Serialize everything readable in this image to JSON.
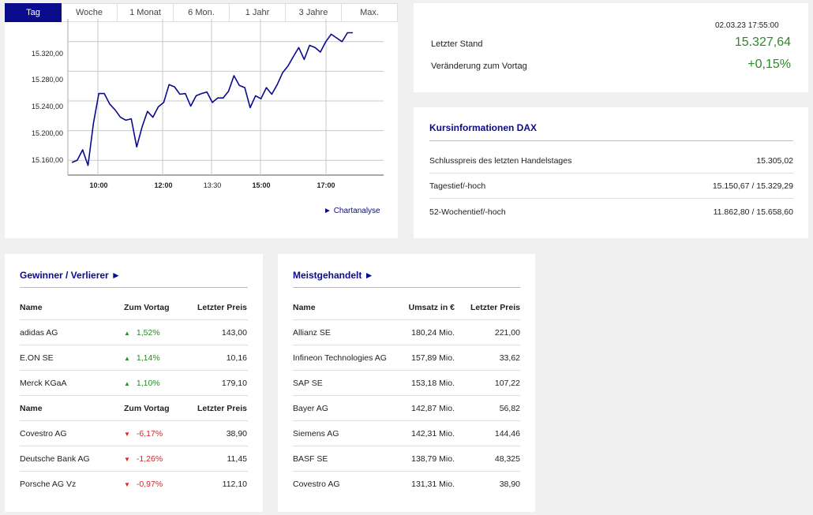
{
  "tabs": [
    "Tag",
    "Woche",
    "1 Monat",
    "6 Mon.",
    "1 Jahr",
    "3 Jahre",
    "Max."
  ],
  "chart": {
    "y_ticks": [
      "15.320,00",
      "15.280,00",
      "15.240,00",
      "15.200,00",
      "15.160,00"
    ],
    "x_ticks": [
      {
        "label": "10:00",
        "bold": true
      },
      {
        "label": "12:00",
        "bold": true
      },
      {
        "label": "13:30",
        "bold": false
      },
      {
        "label": "15:00",
        "bold": true
      },
      {
        "label": "17:00",
        "bold": true
      }
    ],
    "link_label": "Chartanalyse",
    "line_color": "#0a0a8c"
  },
  "chart_data": {
    "type": "line",
    "ylim": [
      15140,
      15340
    ],
    "grid": true,
    "series": [
      {
        "values": [
          15157,
          15160,
          15174,
          15153,
          15210,
          15250,
          15250,
          15236,
          15228,
          15218,
          15214,
          15216,
          15178,
          15205,
          15226,
          15218,
          15232,
          15238,
          15262,
          15259,
          15249,
          15250,
          15233,
          15247,
          15250,
          15252,
          15238,
          15244,
          15244,
          15253,
          15274,
          15261,
          15258,
          15231,
          15247,
          15243,
          15258,
          15249,
          15262,
          15278,
          15287,
          15300,
          15312,
          15296,
          15315,
          15312,
          15306,
          15320,
          15330,
          15325,
          15320,
          15332,
          15332
        ]
      }
    ]
  },
  "quote": {
    "timestamp": "02.03.23 17:55:00",
    "last_label": "Letzter Stand",
    "last_value": "15.327,64",
    "change_label": "Veränderung zum Vortag",
    "change_value": "+0,15%"
  },
  "info": {
    "title": "Kursinformationen DAX",
    "rows": [
      {
        "label": "Schlusspreis des letzten Handelstages",
        "value": "15.305,02"
      },
      {
        "label": "Tagestief/-hoch",
        "value": "15.150,67 / 15.329,29"
      },
      {
        "label": "52-Wochentief/-hoch",
        "value": "11.862,80 / 15.658,60"
      }
    ]
  },
  "movers": {
    "title": "Gewinner / Verlierer ►",
    "headers": [
      "Name",
      "Zum Vortag",
      "Letzter Preis"
    ],
    "gainers": [
      {
        "name": "adidas AG",
        "change": "1,52%",
        "price": "143,00"
      },
      {
        "name": "E.ON SE",
        "change": "1,14%",
        "price": "10,16"
      },
      {
        "name": "Merck KGaA",
        "change": "1,10%",
        "price": "179,10"
      }
    ],
    "losers": [
      {
        "name": "Covestro AG",
        "change": "-6,17%",
        "price": "38,90"
      },
      {
        "name": "Deutsche Bank AG",
        "change": "-1,26%",
        "price": "11,45"
      },
      {
        "name": "Porsche AG Vz",
        "change": "-0,97%",
        "price": "112,10"
      }
    ],
    "up_icon": "▲",
    "down_icon": "▼"
  },
  "traded": {
    "title": "Meistgehandelt ►",
    "headers": [
      "Name",
      "Umsatz in €",
      "Letzter Preis"
    ],
    "rows": [
      {
        "name": "Allianz SE",
        "turnover": "180,24 Mio.",
        "price": "221,00"
      },
      {
        "name": "Infineon Technologies AG",
        "turnover": "157,89 Mio.",
        "price": "33,62"
      },
      {
        "name": "SAP SE",
        "turnover": "153,18 Mio.",
        "price": "107,22"
      },
      {
        "name": "Bayer AG",
        "turnover": "142,87 Mio.",
        "price": "56,82"
      },
      {
        "name": "Siemens AG",
        "turnover": "142,31 Mio.",
        "price": "144,46"
      },
      {
        "name": "BASF SE",
        "turnover": "138,79 Mio.",
        "price": "48,325"
      },
      {
        "name": "Covestro AG",
        "turnover": "131,31 Mio.",
        "price": "38,90"
      }
    ]
  }
}
